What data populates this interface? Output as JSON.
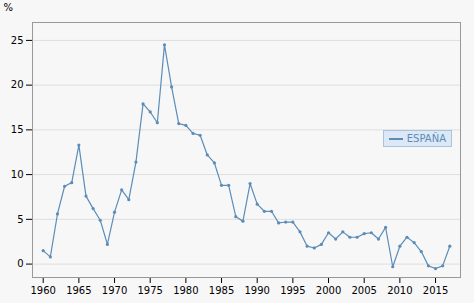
{
  "chart_data": {
    "type": "line",
    "x": [
      1960,
      1961,
      1962,
      1963,
      1964,
      1965,
      1966,
      1967,
      1968,
      1969,
      1970,
      1971,
      1972,
      1973,
      1974,
      1975,
      1976,
      1977,
      1978,
      1979,
      1980,
      1981,
      1982,
      1983,
      1984,
      1985,
      1986,
      1987,
      1988,
      1989,
      1990,
      1991,
      1992,
      1993,
      1994,
      1995,
      1996,
      1997,
      1998,
      1999,
      2000,
      2001,
      2002,
      2003,
      2004,
      2005,
      2006,
      2007,
      2008,
      2009,
      2010,
      2011,
      2012,
      2013,
      2014,
      2015,
      2016,
      2017
    ],
    "series": [
      {
        "name": "ESPAÑA",
        "color": "#5b8db8",
        "marker": "o",
        "values": [
          1.5,
          0.8,
          5.6,
          8.7,
          9.1,
          13.3,
          7.6,
          6.2,
          4.9,
          2.2,
          5.8,
          8.3,
          7.2,
          11.4,
          17.9,
          17.0,
          15.8,
          24.5,
          19.8,
          15.7,
          15.5,
          14.6,
          14.4,
          12.2,
          11.3,
          8.8,
          8.8,
          5.3,
          4.8,
          9.0,
          6.7,
          5.9,
          5.9,
          4.6,
          4.7,
          4.7,
          3.6,
          2.0,
          1.8,
          2.2,
          3.5,
          2.8,
          3.6,
          3.0,
          3.0,
          3.4,
          3.5,
          2.8,
          4.1,
          -0.3,
          2.0,
          3.0,
          2.4,
          1.4,
          -0.2,
          -0.5,
          -0.2,
          2.0
        ]
      }
    ],
    "ylabel": "%",
    "xlim": [
      1958.5,
      2018.5
    ],
    "xticks": [
      1960,
      1965,
      1970,
      1975,
      1980,
      1985,
      1990,
      1995,
      2000,
      2005,
      2010,
      2015
    ],
    "ylim": [
      -1.5,
      27
    ],
    "yticks": [
      0,
      5,
      10,
      15,
      20,
      25
    ],
    "grid": "y",
    "legend": "right"
  }
}
